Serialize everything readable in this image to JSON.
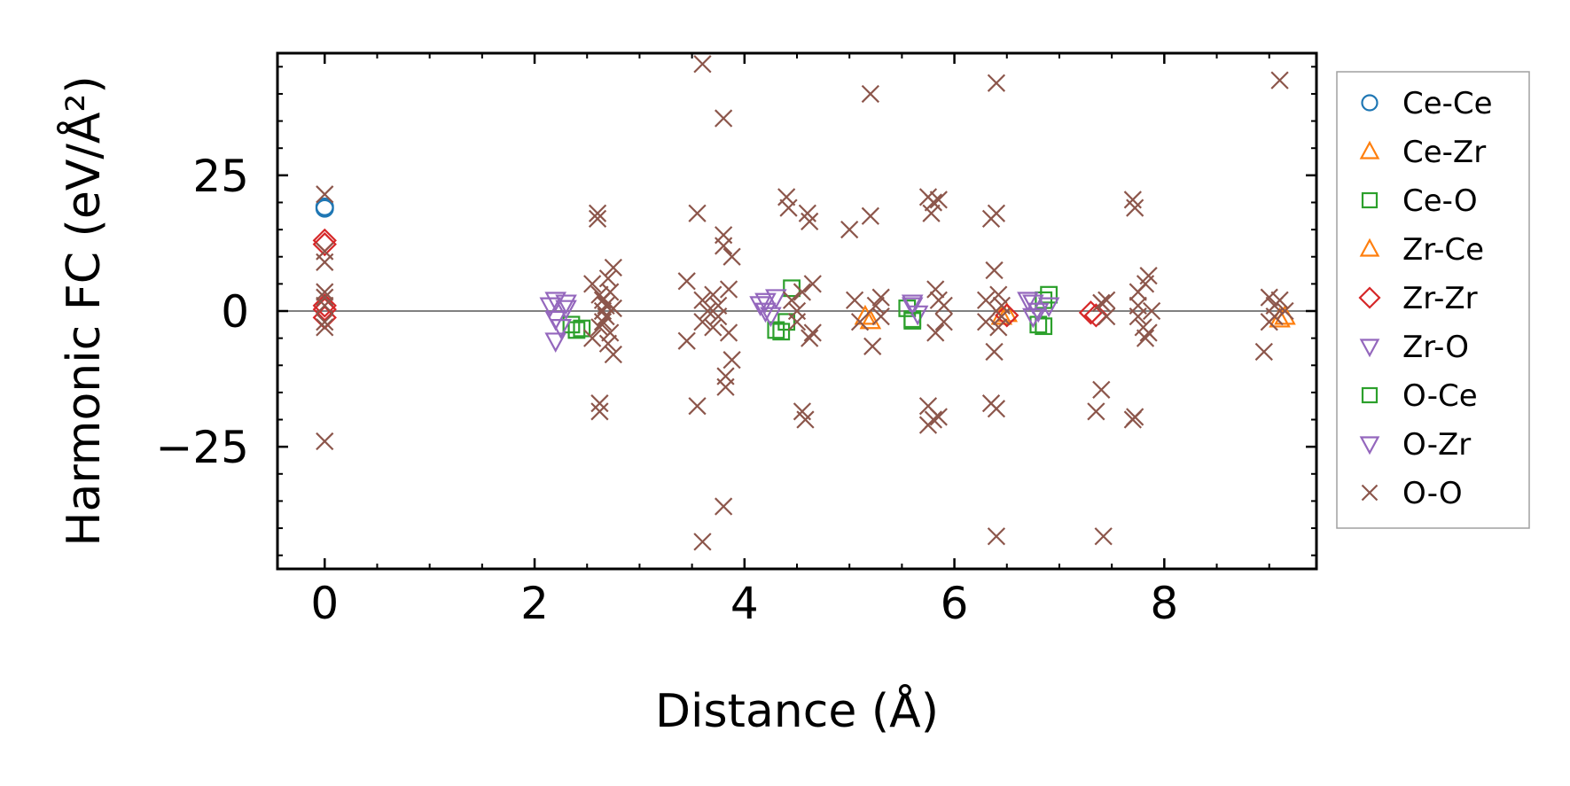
{
  "chart_data": {
    "type": "scatter",
    "title": "",
    "xlabel": "Distance (Å)",
    "ylabel": "Harmonic FC (eV/Å²)",
    "xlim": [
      -0.45,
      9.45
    ],
    "ylim": [
      -47.5,
      47.5
    ],
    "x_ticks": [
      0,
      2,
      4,
      6,
      8
    ],
    "y_ticks": [
      -25,
      0,
      25
    ],
    "x_tick_labels": [
      "0",
      "2",
      "4",
      "6",
      "8"
    ],
    "y_tick_labels": [
      "−25",
      "0",
      "25"
    ],
    "zero_line": true,
    "grid": false,
    "legend_position": "outside-right",
    "series": [
      {
        "name": "Ce-Ce",
        "marker": "circle",
        "color": "#1f77b4",
        "points": [
          [
            0,
            19.2
          ],
          [
            0,
            18.9
          ]
        ]
      },
      {
        "name": "Ce-Zr",
        "marker": "triangle-up",
        "color": "#ff7f0e",
        "points": [
          [
            5.15,
            -1.0
          ],
          [
            5.2,
            -1.8
          ],
          [
            9.1,
            -1.5
          ],
          [
            6.5,
            -0.5
          ]
        ]
      },
      {
        "name": "Ce-O",
        "marker": "square",
        "color": "#2ca02c",
        "points": [
          [
            2.35,
            -2.5
          ],
          [
            2.4,
            -3.5
          ],
          [
            4.3,
            -3.5
          ],
          [
            4.4,
            -2.0
          ],
          [
            4.45,
            4.2
          ],
          [
            5.55,
            0.5
          ],
          [
            5.6,
            -1.5
          ],
          [
            6.8,
            -2.5
          ],
          [
            6.85,
            2.0
          ],
          [
            6.9,
            3.0
          ]
        ]
      },
      {
        "name": "Zr-Ce",
        "marker": "triangle-up",
        "color": "#ff7f0e",
        "points": [
          [
            9.15,
            -1.0
          ],
          [
            6.45,
            -1.0
          ]
        ]
      },
      {
        "name": "Zr-Zr",
        "marker": "diamond",
        "color": "#d62728",
        "points": [
          [
            0,
            13.0
          ],
          [
            0,
            12.3
          ],
          [
            0,
            1.0
          ],
          [
            0,
            0.3
          ],
          [
            0,
            -1.2
          ],
          [
            7.3,
            -0.3
          ],
          [
            7.35,
            -0.8
          ],
          [
            6.5,
            -0.8
          ]
        ]
      },
      {
        "name": "Zr-O",
        "marker": "triangle-down",
        "color": "#9467bd",
        "points": [
          [
            2.15,
            1.0
          ],
          [
            2.2,
            -1.5
          ],
          [
            2.25,
            -3.0
          ],
          [
            2.2,
            -5.5
          ],
          [
            2.3,
            0.5
          ],
          [
            4.15,
            1.2
          ],
          [
            4.2,
            0.0
          ],
          [
            4.25,
            -0.8
          ],
          [
            5.6,
            1.0
          ],
          [
            5.65,
            -0.5
          ]
        ]
      },
      {
        "name": "O-Ce",
        "marker": "square",
        "color": "#2ca02c",
        "points": [
          [
            2.45,
            -3.2
          ],
          [
            4.35,
            -3.8
          ],
          [
            5.6,
            -1.8
          ],
          [
            6.85,
            -2.8
          ]
        ]
      },
      {
        "name": "O-Zr",
        "marker": "triangle-down",
        "color": "#9467bd",
        "points": [
          [
            2.2,
            2.0
          ],
          [
            2.3,
            1.5
          ],
          [
            4.2,
            1.8
          ],
          [
            4.3,
            2.5
          ],
          [
            5.6,
            1.5
          ],
          [
            6.7,
            2.0
          ],
          [
            6.75,
            1.5
          ],
          [
            6.8,
            0.0
          ],
          [
            6.9,
            1.0
          ],
          [
            6.75,
            -1.0
          ]
        ]
      },
      {
        "name": "O-O",
        "marker": "x",
        "color": "#8c564b",
        "points": [
          [
            0,
            21.5
          ],
          [
            0,
            9.0
          ],
          [
            0,
            11.0
          ],
          [
            0,
            3.5
          ],
          [
            0,
            2.5
          ],
          [
            0,
            1.0
          ],
          [
            0,
            -2.0
          ],
          [
            0,
            -3.0
          ],
          [
            0,
            -24.0
          ],
          [
            2.55,
            5.0
          ],
          [
            2.55,
            -5.0
          ],
          [
            2.6,
            18.0
          ],
          [
            2.6,
            17.0
          ],
          [
            2.62,
            3.0
          ],
          [
            2.62,
            -3.0
          ],
          [
            2.62,
            -17.0
          ],
          [
            2.62,
            -18.5
          ],
          [
            2.65,
            2.0
          ],
          [
            2.65,
            -2.0
          ],
          [
            2.65,
            0.0
          ],
          [
            2.68,
            1.0
          ],
          [
            2.68,
            -1.0
          ],
          [
            2.7,
            6.0
          ],
          [
            2.7,
            -6.0
          ],
          [
            2.72,
            3.5
          ],
          [
            2.72,
            -4.0
          ],
          [
            2.75,
            8.0
          ],
          [
            2.75,
            -8.0
          ],
          [
            2.75,
            0.5
          ],
          [
            3.45,
            5.5
          ],
          [
            3.45,
            -5.5
          ],
          [
            3.55,
            18.0
          ],
          [
            3.55,
            -17.5
          ],
          [
            3.6,
            45.5
          ],
          [
            3.6,
            -42.5
          ],
          [
            3.6,
            2.0
          ],
          [
            3.6,
            -2.0
          ],
          [
            3.65,
            0.0
          ],
          [
            3.7,
            3.0
          ],
          [
            3.7,
            -3.0
          ],
          [
            3.75,
            1.0
          ],
          [
            3.75,
            -1.0
          ],
          [
            3.8,
            35.5
          ],
          [
            3.8,
            -36.0
          ],
          [
            3.8,
            14.0
          ],
          [
            3.8,
            12.0
          ],
          [
            3.82,
            -12.0
          ],
          [
            3.82,
            -14.0
          ],
          [
            3.85,
            4.0
          ],
          [
            3.85,
            -4.0
          ],
          [
            3.88,
            10.0
          ],
          [
            3.88,
            -9.0
          ],
          [
            4.4,
            21.0
          ],
          [
            4.42,
            19.0
          ],
          [
            4.45,
            2.0
          ],
          [
            4.5,
            0.0
          ],
          [
            4.5,
            -2.0
          ],
          [
            4.55,
            -18.5
          ],
          [
            4.55,
            3.5
          ],
          [
            4.58,
            -20.0
          ],
          [
            4.6,
            18.0
          ],
          [
            4.62,
            16.5
          ],
          [
            4.62,
            -5.0
          ],
          [
            4.65,
            5.0
          ],
          [
            4.65,
            -4.0
          ],
          [
            5.0,
            15.0
          ],
          [
            5.05,
            2.0
          ],
          [
            5.1,
            -2.0
          ],
          [
            5.2,
            40.0
          ],
          [
            5.2,
            17.5
          ],
          [
            5.22,
            -6.5
          ],
          [
            5.25,
            1.0
          ],
          [
            5.3,
            -1.0
          ],
          [
            5.3,
            2.5
          ],
          [
            5.75,
            21.0
          ],
          [
            5.75,
            -17.5
          ],
          [
            5.75,
            -21.0
          ],
          [
            5.78,
            18.0
          ],
          [
            5.8,
            20.0
          ],
          [
            5.8,
            -20.0
          ],
          [
            5.82,
            4.0
          ],
          [
            5.82,
            -4.0
          ],
          [
            5.85,
            20.5
          ],
          [
            5.85,
            -19.5
          ],
          [
            5.85,
            2.0
          ],
          [
            5.9,
            -2.0
          ],
          [
            5.9,
            1.0
          ],
          [
            6.35,
            17.0
          ],
          [
            6.35,
            -17.0
          ],
          [
            6.38,
            7.5
          ],
          [
            6.38,
            -7.5
          ],
          [
            6.4,
            42.0
          ],
          [
            6.4,
            -41.5
          ],
          [
            6.4,
            18.0
          ],
          [
            6.4,
            -18.0
          ],
          [
            6.42,
            3.0
          ],
          [
            6.42,
            -3.0
          ],
          [
            6.45,
            1.0
          ],
          [
            6.45,
            -1.0
          ],
          [
            6.3,
            2.0
          ],
          [
            6.3,
            -2.0
          ],
          [
            7.35,
            -18.5
          ],
          [
            7.4,
            -14.5
          ],
          [
            7.4,
            1.5
          ],
          [
            7.42,
            -41.5
          ],
          [
            7.45,
            -1.0
          ],
          [
            7.45,
            2.0
          ],
          [
            7.7,
            20.5
          ],
          [
            7.7,
            -20.0
          ],
          [
            7.72,
            19.0
          ],
          [
            7.72,
            -19.5
          ],
          [
            7.75,
            1.0
          ],
          [
            7.75,
            -1.0
          ],
          [
            7.75,
            3.5
          ],
          [
            7.8,
            -3.0
          ],
          [
            7.82,
            5.0
          ],
          [
            7.82,
            -5.0
          ],
          [
            7.85,
            6.5
          ],
          [
            7.85,
            -4.0
          ],
          [
            7.88,
            0.0
          ],
          [
            8.95,
            -7.5
          ],
          [
            9.0,
            2.5
          ],
          [
            9.0,
            -2.0
          ],
          [
            9.05,
            1.0
          ],
          [
            9.05,
            -1.0
          ],
          [
            9.1,
            42.5
          ],
          [
            9.1,
            2.0
          ],
          [
            9.15,
            0.0
          ]
        ]
      }
    ]
  }
}
